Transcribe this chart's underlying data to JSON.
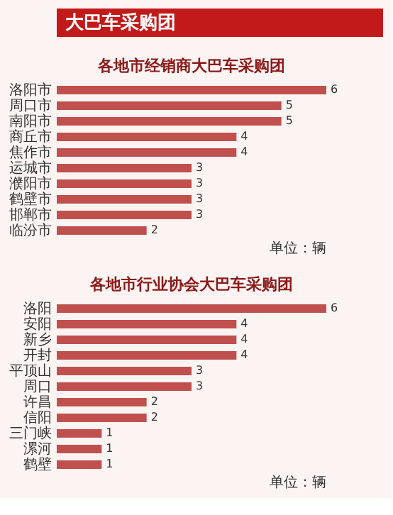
{
  "chart_data": [
    {
      "type": "other",
      "title": "大巴车采购团"
    },
    {
      "type": "bar",
      "orientation": "horizontal",
      "title": "各地市经销商大巴车采购团",
      "categories": [
        "洛阳市",
        "周口市",
        "南阳市",
        "商丘市",
        "焦作市",
        "运城市",
        "濮阳市",
        "鹤壁市",
        "邯郸市",
        "临汾市"
      ],
      "values": [
        6,
        5,
        5,
        4,
        4,
        3,
        3,
        3,
        3,
        2
      ],
      "color": "#c0504d",
      "data_labels": true,
      "xlim": [
        0,
        6
      ],
      "annotations": [
        "单位：辆"
      ]
    },
    {
      "type": "bar",
      "orientation": "horizontal",
      "title": "各地市行业协会大巴车采购团",
      "categories": [
        "洛阳",
        "安阳",
        "新乡",
        "开封",
        "平顶山",
        "周口",
        "许昌",
        "信阳",
        "三门峡",
        "漯河",
        "鹤壁"
      ],
      "values": [
        6,
        4,
        4,
        4,
        3,
        3,
        2,
        2,
        1,
        1,
        1
      ],
      "color": "#c0504d",
      "data_labels": true,
      "xlim": [
        0,
        6
      ],
      "annotations": [
        "单位：辆"
      ]
    }
  ]
}
